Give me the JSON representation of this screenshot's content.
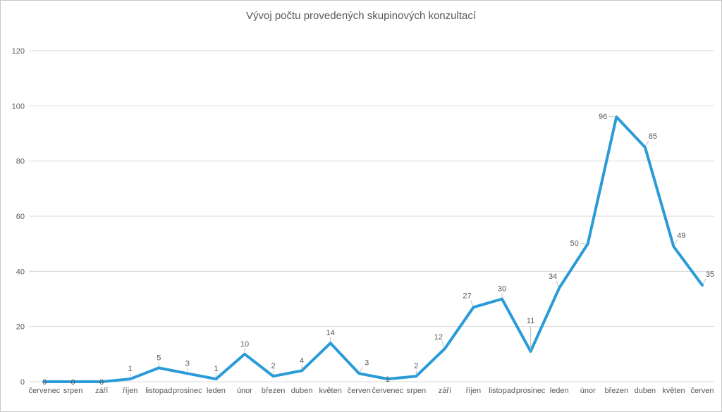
{
  "chart_data": {
    "type": "line",
    "title": "Vývoj počtu provedených skupinových konzultací",
    "categories": [
      "červenec",
      "srpen",
      "září",
      "říjen",
      "listopad",
      "prosinec",
      "leden",
      "únor",
      "březen",
      "duben",
      "květen",
      "červen",
      "červenec",
      "srpen",
      "září",
      "říjen",
      "listopad",
      "prosinec",
      "leden",
      "únor",
      "březen",
      "duben",
      "květen",
      "červen"
    ],
    "values": [
      0,
      0,
      0,
      1,
      5,
      3,
      1,
      10,
      2,
      4,
      14,
      3,
      1,
      2,
      12,
      27,
      30,
      11,
      34,
      50,
      96,
      85,
      49,
      35
    ],
    "xlabel": "",
    "ylabel": "",
    "ylim": [
      0,
      120
    ],
    "yticks": [
      0,
      20,
      40,
      60,
      80,
      100,
      120
    ],
    "grid": true,
    "legend": "none",
    "label_placements": [
      "center",
      "center",
      "center",
      "above",
      "above",
      "above",
      "above",
      "above",
      "above",
      "above",
      "above",
      "above-right",
      "center",
      "above",
      "above-left",
      "above-left",
      "above",
      "above-far",
      "above-left",
      "left",
      "left",
      "above-right",
      "above-right",
      "above-right"
    ],
    "colors": {
      "line": "#2B9BD8",
      "axis_text": "#595959",
      "data_label": "#595959",
      "gridline": "#D9D9D9",
      "leader_line": "#BFBFBF",
      "title_text": "#595959",
      "frame_border": "#C9C9C9",
      "background": "#FFFFFF"
    }
  }
}
